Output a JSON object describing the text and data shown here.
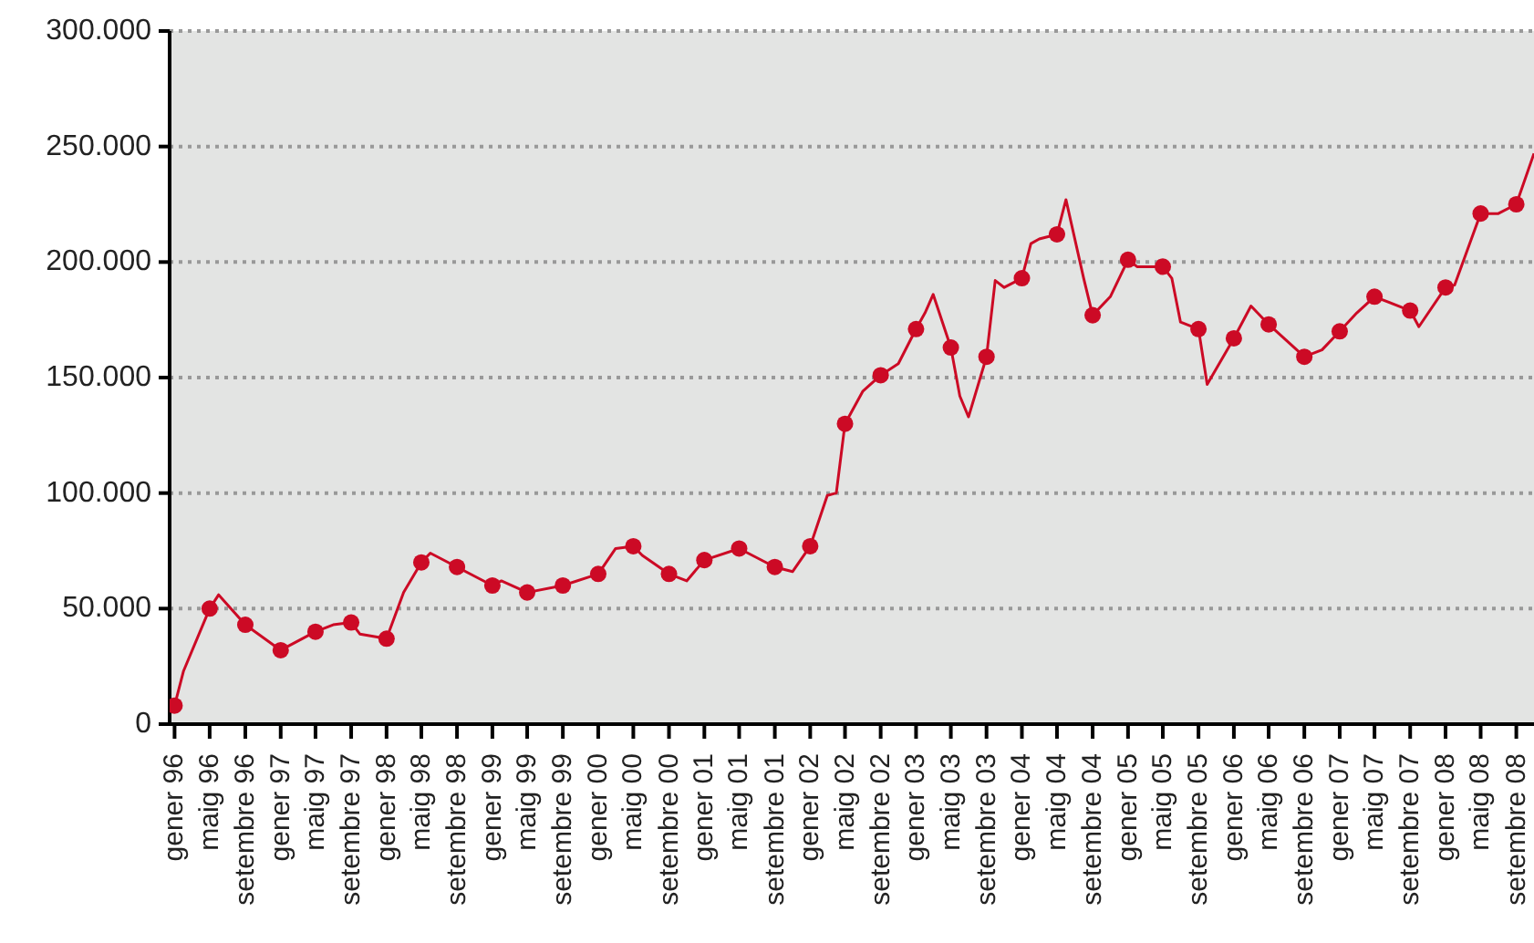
{
  "chart_data": {
    "type": "line",
    "series": [
      {
        "color": "#cc0a25",
        "marker": "none",
        "x": [
          "1996-01",
          "1996-02",
          "1996-05",
          "1996-06",
          "1996-09",
          "1997-01",
          "1997-05",
          "1997-07",
          "1997-09",
          "1997-10",
          "1998-01",
          "1998-03",
          "1998-05",
          "1998-06",
          "1998-09",
          "1999-01",
          "1999-02",
          "1999-05",
          "1999-09",
          "2000-01",
          "2000-03",
          "2000-05",
          "2000-06",
          "2000-09",
          "2000-11",
          "2001-01",
          "2001-05",
          "2001-09",
          "2001-11",
          "2002-01",
          "2002-03",
          "2002-04",
          "2002-05",
          "2002-07",
          "2002-09",
          "2002-11",
          "2003-01",
          "2003-02",
          "2003-03",
          "2003-05",
          "2003-06",
          "2003-07",
          "2003-09",
          "2003-10",
          "2003-11",
          "2004-01",
          "2004-02",
          "2004-03",
          "2004-05",
          "2004-06",
          "2004-08",
          "2004-09",
          "2004-11",
          "2005-01",
          "2005-02",
          "2005-05",
          "2005-06",
          "2005-07",
          "2005-09",
          "2005-10",
          "2006-01",
          "2006-03",
          "2006-05",
          "2006-09",
          "2006-11",
          "2007-01",
          "2007-03",
          "2007-05",
          "2007-09",
          "2007-10",
          "2008-01",
          "2008-02",
          "2008-05",
          "2008-07",
          "2008-09",
          "2008-11"
        ],
        "values": [
          8000,
          23000,
          50000,
          56000,
          43000,
          32000,
          40000,
          43000,
          44000,
          39000,
          37000,
          57000,
          70000,
          74000,
          68000,
          60000,
          62000,
          57000,
          60000,
          65000,
          76000,
          77000,
          73000,
          65000,
          62000,
          71000,
          76000,
          68000,
          66000,
          77000,
          99000,
          100000,
          130000,
          144000,
          151000,
          156000,
          171000,
          178000,
          186000,
          163000,
          142000,
          133000,
          159000,
          192000,
          189000,
          193000,
          208000,
          210000,
          212000,
          227000,
          193000,
          177000,
          185000,
          201000,
          198000,
          198000,
          193000,
          174000,
          171000,
          147000,
          167000,
          181000,
          173000,
          159000,
          162000,
          170000,
          178000,
          185000,
          179000,
          172000,
          189000,
          190000,
          221000,
          221000,
          225000,
          247000
        ]
      },
      {
        "type": "scatter",
        "color": "#cc0a25",
        "marker": "circle",
        "x": [
          "1996-01",
          "1996-05",
          "1996-09",
          "1997-01",
          "1997-05",
          "1997-09",
          "1998-01",
          "1998-05",
          "1998-09",
          "1999-01",
          "1999-05",
          "1999-09",
          "2000-01",
          "2000-05",
          "2000-09",
          "2001-01",
          "2001-05",
          "2001-09",
          "2002-01",
          "2002-05",
          "2002-09",
          "2003-01",
          "2003-05",
          "2003-09",
          "2004-01",
          "2004-05",
          "2004-09",
          "2005-01",
          "2005-05",
          "2005-09",
          "2006-01",
          "2006-05",
          "2006-09",
          "2007-01",
          "2007-05",
          "2007-09",
          "2008-01",
          "2008-05",
          "2008-09"
        ],
        "values": [
          8000,
          50000,
          43000,
          32000,
          40000,
          44000,
          37000,
          70000,
          68000,
          60000,
          57000,
          60000,
          65000,
          77000,
          65000,
          71000,
          76000,
          68000,
          77000,
          130000,
          151000,
          171000,
          163000,
          159000,
          193000,
          212000,
          177000,
          201000,
          198000,
          171000,
          167000,
          173000,
          159000,
          170000,
          185000,
          179000,
          189000,
          221000,
          225000
        ]
      }
    ],
    "xlim": [
      "1995-12-15",
      "2008-11"
    ],
    "xticks": [
      {
        "value": "1996-01",
        "label": "gener 96"
      },
      {
        "value": "1996-05",
        "label": "maig 96"
      },
      {
        "value": "1996-09",
        "label": "setembre 96"
      },
      {
        "value": "1997-01",
        "label": "gener 97"
      },
      {
        "value": "1997-05",
        "label": "maig 97"
      },
      {
        "value": "1997-09",
        "label": "setembre 97"
      },
      {
        "value": "1998-01",
        "label": "gener 98"
      },
      {
        "value": "1998-05",
        "label": "maig 98"
      },
      {
        "value": "1998-09",
        "label": "setembre 98"
      },
      {
        "value": "1999-01",
        "label": "gener 99"
      },
      {
        "value": "1999-05",
        "label": "maig 99"
      },
      {
        "value": "1999-09",
        "label": "setembre 99"
      },
      {
        "value": "2000-01",
        "label": "gener 00"
      },
      {
        "value": "2000-05",
        "label": "maig 00"
      },
      {
        "value": "2000-09",
        "label": "setembre 00"
      },
      {
        "value": "2001-01",
        "label": "gener 01"
      },
      {
        "value": "2001-05",
        "label": "maig 01"
      },
      {
        "value": "2001-09",
        "label": "setembre 01"
      },
      {
        "value": "2002-01",
        "label": "gener 02"
      },
      {
        "value": "2002-05",
        "label": "maig 02"
      },
      {
        "value": "2002-09",
        "label": "setembre 02"
      },
      {
        "value": "2003-01",
        "label": "gener 03"
      },
      {
        "value": "2003-05",
        "label": "maig 03"
      },
      {
        "value": "2003-09",
        "label": "setembre 03"
      },
      {
        "value": "2004-01",
        "label": "gener 04"
      },
      {
        "value": "2004-05",
        "label": "maig 04"
      },
      {
        "value": "2004-09",
        "label": "setembre 04"
      },
      {
        "value": "2005-01",
        "label": "gener 05"
      },
      {
        "value": "2005-05",
        "label": "maig 05"
      },
      {
        "value": "2005-09",
        "label": "setembre 05"
      },
      {
        "value": "2006-01",
        "label": "gener 06"
      },
      {
        "value": "2006-05",
        "label": "maig 06"
      },
      {
        "value": "2006-09",
        "label": "setembre 06"
      },
      {
        "value": "2007-01",
        "label": "gener 07"
      },
      {
        "value": "2007-05",
        "label": "maig 07"
      },
      {
        "value": "2007-09",
        "label": "setembre 07"
      },
      {
        "value": "2008-01",
        "label": "gener 08"
      },
      {
        "value": "2008-05",
        "label": "maig 08"
      },
      {
        "value": "2008-09",
        "label": "setembre 08"
      }
    ],
    "ylim": [
      0,
      300000
    ],
    "yticks": [
      0,
      {
        "value": 50000,
        "label": "50.000"
      },
      {
        "value": 100000,
        "label": "100.000"
      },
      {
        "value": 150000,
        "label": "150.000"
      },
      {
        "value": 200000,
        "label": "200.000"
      },
      {
        "value": 250000,
        "label": "250.000"
      },
      {
        "value": 300000,
        "label": "300.000"
      }
    ],
    "grid": "y",
    "legend": false
  }
}
